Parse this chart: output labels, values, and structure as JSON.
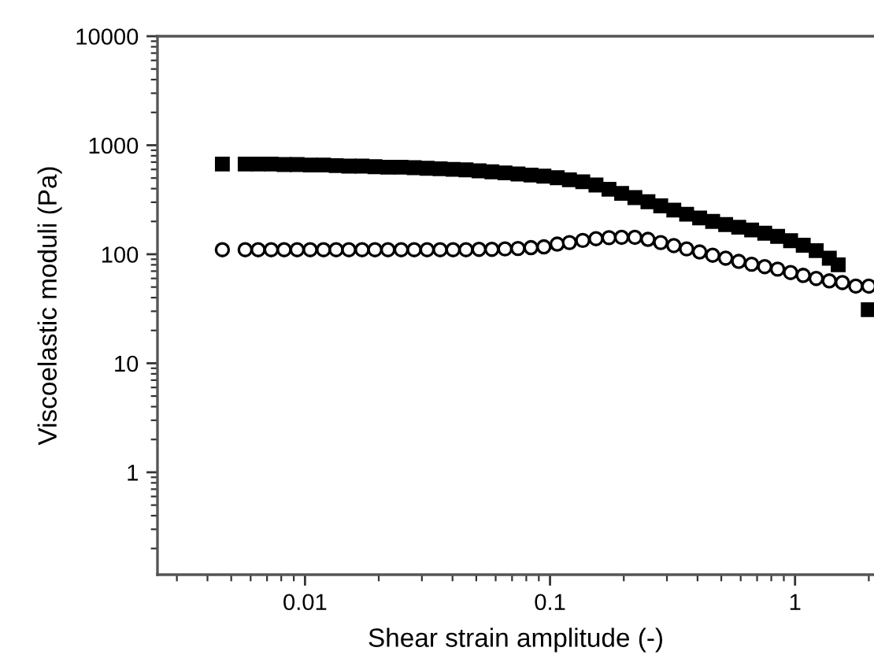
{
  "chart_data": {
    "type": "scatter",
    "xlabel": "Shear strain amplitude (-)",
    "ylabel": "Viscoelastic moduli (Pa)",
    "log": "xy",
    "grid": false,
    "xlim": [
      0.0025,
      2.1
    ],
    "xticks": [
      0.01,
      0.1,
      1
    ],
    "ylim": [
      0.115,
      10000
    ],
    "yticks": [
      1,
      10,
      100,
      1000,
      10000
    ],
    "series": [
      {
        "color": "#000000",
        "marker": "square",
        "x": [
          0.0046,
          0.0057,
          0.00644,
          0.00728,
          0.00822,
          0.00929,
          0.0105,
          0.0119,
          0.0134,
          0.0151,
          0.0171,
          0.0193,
          0.0218,
          0.0247,
          0.0279,
          0.0315,
          0.0356,
          0.0402,
          0.0454,
          0.0513,
          0.0579,
          0.0655,
          0.074,
          0.0836,
          0.0944,
          0.107,
          0.12,
          0.136,
          0.154,
          0.174,
          0.196,
          0.222,
          0.251,
          0.283,
          0.32,
          0.361,
          0.408,
          0.461,
          0.521,
          0.589,
          0.665,
          0.752,
          0.849,
          0.959,
          1.08,
          1.22,
          1.38,
          1.5,
          1.99
        ],
        "values": [
          672,
          672,
          672,
          672,
          665,
          665,
          658,
          658,
          650,
          643,
          643,
          636,
          629,
          629,
          622,
          615,
          608,
          601,
          595,
          582,
          570,
          557,
          545,
          533,
          521,
          503,
          482,
          462,
          432,
          395,
          362,
          331,
          303,
          278,
          254,
          233,
          215,
          200,
          187,
          177,
          167,
          156,
          146,
          133,
          121,
          108,
          92,
          80,
          31
        ]
      },
      {
        "color": "#000000",
        "marker": "circle",
        "x": [
          0.0046,
          0.0057,
          0.00644,
          0.00728,
          0.00822,
          0.00929,
          0.0105,
          0.0119,
          0.0134,
          0.0151,
          0.0171,
          0.0193,
          0.0218,
          0.0247,
          0.0279,
          0.0315,
          0.0356,
          0.0402,
          0.0454,
          0.0513,
          0.0579,
          0.0655,
          0.074,
          0.0836,
          0.0944,
          0.107,
          0.12,
          0.136,
          0.154,
          0.174,
          0.196,
          0.222,
          0.251,
          0.283,
          0.32,
          0.361,
          0.408,
          0.461,
          0.521,
          0.589,
          0.665,
          0.752,
          0.849,
          0.959,
          1.08,
          1.22,
          1.38,
          1.56,
          1.77,
          2.0
        ],
        "values": [
          110,
          110,
          110,
          110,
          110,
          110,
          110,
          110,
          110,
          110,
          110,
          110,
          110,
          110,
          110,
          110,
          110,
          110,
          110,
          111,
          111,
          112,
          113,
          115,
          117,
          124,
          128,
          134,
          139,
          142,
          143,
          143,
          137,
          128,
          120,
          112,
          105,
          98,
          92,
          86,
          81,
          77,
          73,
          68,
          64,
          60,
          57,
          55,
          51,
          51
        ]
      }
    ]
  }
}
